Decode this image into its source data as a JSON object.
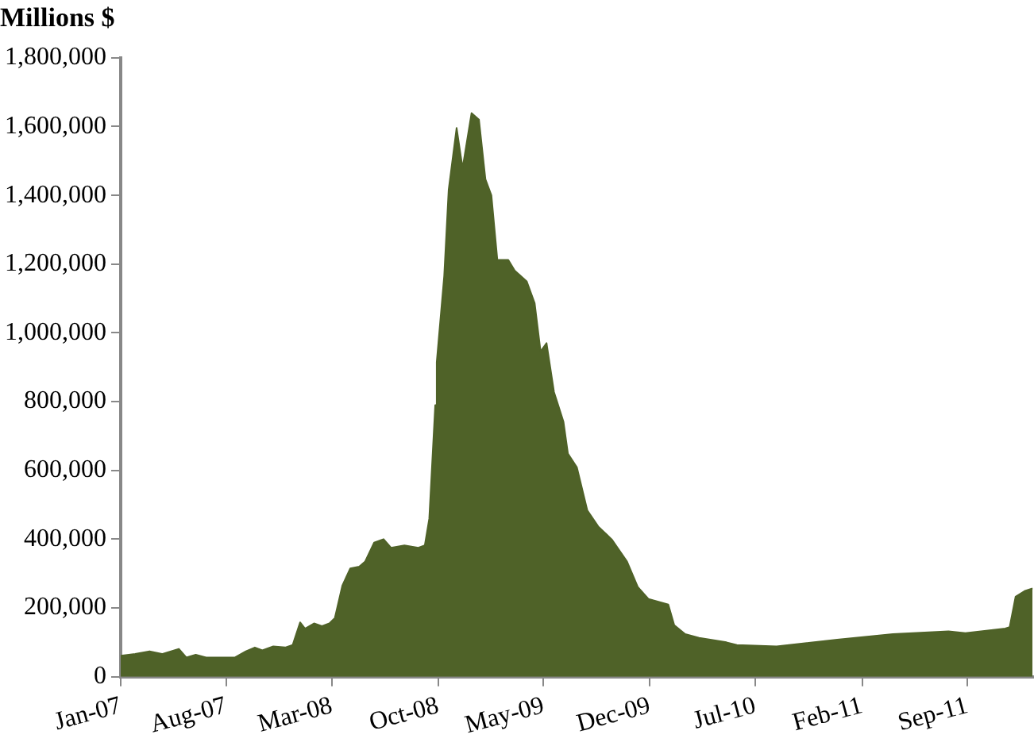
{
  "chart_data": {
    "type": "area",
    "title": "Millions $",
    "x": [
      "2007-01-01",
      "2007-01-30",
      "2007-02-28",
      "2007-03-25",
      "2007-04-28",
      "2007-05-13",
      "2007-06-01",
      "2007-06-22",
      "2007-08-19",
      "2007-09-10",
      "2007-09-28",
      "2007-10-13",
      "2007-11-04",
      "2007-11-28",
      "2007-12-13",
      "2007-12-28",
      "2008-01-07",
      "2008-01-25",
      "2008-02-10",
      "2008-02-25",
      "2008-03-07",
      "2008-03-22",
      "2008-04-07",
      "2008-04-25",
      "2008-05-07",
      "2008-05-25",
      "2008-06-13",
      "2008-06-28",
      "2008-07-25",
      "2008-08-22",
      "2008-09-04",
      "2008-09-13",
      "2008-09-25",
      "2008-09-28",
      "2008-10-13",
      "2008-10-22",
      "2008-11-07",
      "2008-11-19",
      "2008-12-07",
      "2008-12-22",
      "2009-01-04",
      "2009-01-16",
      "2009-01-28",
      "2009-02-19",
      "2009-03-04",
      "2009-03-28",
      "2009-04-13",
      "2009-04-25",
      "2009-05-07",
      "2009-05-22",
      "2009-06-10",
      "2009-06-19",
      "2009-07-07",
      "2009-07-28",
      "2009-08-19",
      "2009-09-16",
      "2009-10-16",
      "2009-11-07",
      "2009-11-28",
      "2010-01-07",
      "2010-01-19",
      "2010-02-10",
      "2010-03-10",
      "2010-05-04",
      "2010-05-25",
      "2010-08-13",
      "2010-12-13",
      "2011-04-04",
      "2011-07-25",
      "2011-08-28",
      "2011-11-16",
      "2011-11-25",
      "2011-12-07",
      "2011-12-25",
      "2012-01-10"
    ],
    "series": [
      {
        "color": "#4f6228",
        "values": [
          61000,
          66000,
          74000,
          66000,
          81000,
          56000,
          64000,
          56000,
          56000,
          74000,
          85000,
          77000,
          88000,
          85000,
          92000,
          158000,
          140000,
          155000,
          147000,
          155000,
          171000,
          265000,
          315000,
          320000,
          335000,
          390000,
          400000,
          375000,
          382000,
          375000,
          382000,
          460000,
          790000,
          915000,
          1165000,
          1416000,
          1596000,
          1479000,
          1639000,
          1620000,
          1447000,
          1400000,
          1212000,
          1212000,
          1181000,
          1150000,
          1087000,
          946000,
          970000,
          828000,
          742000,
          649000,
          609000,
          484000,
          437000,
          398000,
          335000,
          260000,
          226000,
          210000,
          150000,
          124000,
          113000,
          100000,
          92000,
          88000,
          108000,
          124000,
          132000,
          127000,
          140000,
          144000,
          233000,
          249000,
          257000
        ]
      }
    ],
    "xlim": [
      "2007-01-01",
      "2012-01-13"
    ],
    "xticks": [
      {
        "value": "2007-01",
        "label": "Jan-07"
      },
      {
        "value": "2007-08",
        "label": "Aug-07"
      },
      {
        "value": "2008-03",
        "label": "Mar-08"
      },
      {
        "value": "2008-10",
        "label": "Oct-08"
      },
      {
        "value": "2009-05",
        "label": "May-09"
      },
      {
        "value": "2009-12",
        "label": "Dec-09"
      },
      {
        "value": "2010-07",
        "label": "Jul-10"
      },
      {
        "value": "2011-02",
        "label": "Feb-11"
      },
      {
        "value": "2011-09",
        "label": "Sep-11"
      }
    ],
    "ylim": [
      0,
      1800000
    ],
    "yticks": [
      0,
      {
        "value": 200000,
        "label": "200,000"
      },
      {
        "value": 400000,
        "label": "400,000"
      },
      {
        "value": 600000,
        "label": "600,000"
      },
      {
        "value": 800000,
        "label": "800,000"
      },
      {
        "value": 1000000,
        "label": "1,000,000"
      },
      {
        "value": 1200000,
        "label": "1,200,000"
      },
      {
        "value": 1400000,
        "label": "1,400,000"
      },
      {
        "value": 1600000,
        "label": "1,600,000"
      },
      {
        "value": 1800000,
        "label": "1,800,000"
      }
    ],
    "grid": false,
    "legend": false
  }
}
